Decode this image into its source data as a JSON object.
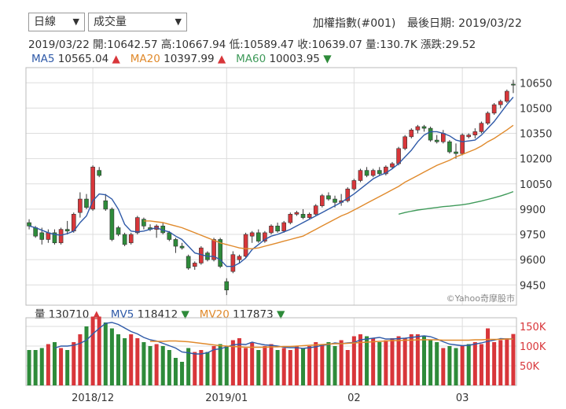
{
  "toolbar": {
    "period_select": "日線",
    "indicator_select": "成交量",
    "index_title": "加權指數(#001)",
    "last_date_label": "最後日期: 2019/03/22"
  },
  "quote": {
    "date": "2019/03/22",
    "open": "開:10642.57",
    "high": "高:10667.94",
    "low": "低:10589.47",
    "close": "收:10639.07",
    "volume": "量:130.7K",
    "change": "漲跌:29.52"
  },
  "ma": {
    "ma5_label": "MA5",
    "ma5_value": "10565.04",
    "ma5_dir": "▲",
    "ma20_label": "MA20",
    "ma20_value": "10397.99",
    "ma20_dir": "▲",
    "ma60_label": "MA60",
    "ma60_value": "10003.95",
    "ma60_dir": "▼"
  },
  "vol_legend": {
    "vol_label": "量",
    "vol_value": "130710",
    "vol_dir": "▲",
    "mv5_label": "MV5",
    "mv5_value": "118412",
    "mv5_dir": "▼",
    "mv20_label": "MV20",
    "mv20_value": "117873",
    "mv20_dir": "▼"
  },
  "watermark": "©Yahoo奇摩股市",
  "colors": {
    "up": "#d8363a",
    "down": "#2e8b3a",
    "ma5": "#2f5aa8",
    "ma20": "#e08a2c",
    "ma60": "#3f9a5a",
    "grid": "#dddddd"
  },
  "chart_data": [
    {
      "type": "candlestick",
      "y_ticks": [
        "10650",
        "10500",
        "10350",
        "10200",
        "10050",
        "9900",
        "9750",
        "9600",
        "9450"
      ],
      "y_tick_values": [
        10650,
        10500,
        10350,
        10200,
        10050,
        9900,
        9750,
        9600,
        9450
      ],
      "ylim": [
        9330,
        10740
      ],
      "x_ticks": [
        "2018/12",
        "2019/01",
        "02",
        "03"
      ],
      "x_tick_index": [
        10,
        31,
        51,
        68
      ],
      "candles": [
        {
          "o": 9820,
          "h": 9840,
          "l": 9780,
          "c": 9800
        },
        {
          "o": 9790,
          "h": 9800,
          "l": 9730,
          "c": 9740
        },
        {
          "o": 9760,
          "h": 9790,
          "l": 9690,
          "c": 9720
        },
        {
          "o": 9720,
          "h": 9780,
          "l": 9700,
          "c": 9760
        },
        {
          "o": 9760,
          "h": 9780,
          "l": 9690,
          "c": 9700
        },
        {
          "o": 9700,
          "h": 9790,
          "l": 9690,
          "c": 9780
        },
        {
          "o": 9780,
          "h": 9830,
          "l": 9750,
          "c": 9770
        },
        {
          "o": 9770,
          "h": 9880,
          "l": 9760,
          "c": 9870
        },
        {
          "o": 9880,
          "h": 10000,
          "l": 9850,
          "c": 9960
        },
        {
          "o": 9960,
          "h": 9990,
          "l": 9900,
          "c": 9910
        },
        {
          "o": 9900,
          "h": 10160,
          "l": 9890,
          "c": 10150
        },
        {
          "o": 10130,
          "h": 10150,
          "l": 10090,
          "c": 10100
        },
        {
          "o": 9950,
          "h": 9990,
          "l": 9890,
          "c": 9900
        },
        {
          "o": 9900,
          "h": 9910,
          "l": 9710,
          "c": 9720
        },
        {
          "o": 9790,
          "h": 9800,
          "l": 9740,
          "c": 9750
        },
        {
          "o": 9750,
          "h": 9760,
          "l": 9680,
          "c": 9690
        },
        {
          "o": 9700,
          "h": 9760,
          "l": 9690,
          "c": 9750
        },
        {
          "o": 9760,
          "h": 9860,
          "l": 9750,
          "c": 9850
        },
        {
          "o": 9840,
          "h": 9850,
          "l": 9780,
          "c": 9800
        },
        {
          "o": 9790,
          "h": 9810,
          "l": 9770,
          "c": 9780
        },
        {
          "o": 9780,
          "h": 9810,
          "l": 9730,
          "c": 9800
        },
        {
          "o": 9800,
          "h": 9820,
          "l": 9750,
          "c": 9760
        },
        {
          "o": 9760,
          "h": 9770,
          "l": 9710,
          "c": 9720
        },
        {
          "o": 9720,
          "h": 9730,
          "l": 9640,
          "c": 9680
        },
        {
          "o": 9680,
          "h": 9700,
          "l": 9660,
          "c": 9670
        },
        {
          "o": 9620,
          "h": 9630,
          "l": 9540,
          "c": 9550
        },
        {
          "o": 9560,
          "h": 9590,
          "l": 9540,
          "c": 9580
        },
        {
          "o": 9580,
          "h": 9680,
          "l": 9570,
          "c": 9670
        },
        {
          "o": 9640,
          "h": 9650,
          "l": 9590,
          "c": 9600
        },
        {
          "o": 9600,
          "h": 9730,
          "l": 9590,
          "c": 9720
        },
        {
          "o": 9720,
          "h": 9730,
          "l": 9550,
          "c": 9560
        },
        {
          "o": 9470,
          "h": 9490,
          "l": 9390,
          "c": 9420
        },
        {
          "o": 9530,
          "h": 9650,
          "l": 9520,
          "c": 9630
        },
        {
          "o": 9600,
          "h": 9630,
          "l": 9580,
          "c": 9620
        },
        {
          "o": 9620,
          "h": 9760,
          "l": 9610,
          "c": 9750
        },
        {
          "o": 9740,
          "h": 9770,
          "l": 9700,
          "c": 9760
        },
        {
          "o": 9760,
          "h": 9780,
          "l": 9700,
          "c": 9710
        },
        {
          "o": 9710,
          "h": 9770,
          "l": 9700,
          "c": 9760
        },
        {
          "o": 9760,
          "h": 9810,
          "l": 9750,
          "c": 9800
        },
        {
          "o": 9800,
          "h": 9820,
          "l": 9760,
          "c": 9770
        },
        {
          "o": 9770,
          "h": 9830,
          "l": 9760,
          "c": 9820
        },
        {
          "o": 9820,
          "h": 9880,
          "l": 9810,
          "c": 9870
        },
        {
          "o": 9870,
          "h": 9890,
          "l": 9860,
          "c": 9880
        },
        {
          "o": 9870,
          "h": 9900,
          "l": 9840,
          "c": 9850
        },
        {
          "o": 9850,
          "h": 9880,
          "l": 9840,
          "c": 9870
        },
        {
          "o": 9870,
          "h": 9930,
          "l": 9860,
          "c": 9920
        },
        {
          "o": 9920,
          "h": 9990,
          "l": 9910,
          "c": 9980
        },
        {
          "o": 9980,
          "h": 10000,
          "l": 9950,
          "c": 9960
        },
        {
          "o": 9960,
          "h": 9980,
          "l": 9910,
          "c": 9940
        },
        {
          "o": 9940,
          "h": 9990,
          "l": 9920,
          "c": 9950
        },
        {
          "o": 9950,
          "h": 10030,
          "l": 9940,
          "c": 10020
        },
        {
          "o": 10020,
          "h": 10080,
          "l": 10010,
          "c": 10070
        },
        {
          "o": 10070,
          "h": 10140,
          "l": 10060,
          "c": 10130
        },
        {
          "o": 10130,
          "h": 10150,
          "l": 10090,
          "c": 10100
        },
        {
          "o": 10100,
          "h": 10140,
          "l": 10090,
          "c": 10130
        },
        {
          "o": 10130,
          "h": 10150,
          "l": 10100,
          "c": 10110
        },
        {
          "o": 10110,
          "h": 10160,
          "l": 10100,
          "c": 10150
        },
        {
          "o": 10150,
          "h": 10180,
          "l": 10140,
          "c": 10170
        },
        {
          "o": 10170,
          "h": 10270,
          "l": 10160,
          "c": 10260
        },
        {
          "o": 10260,
          "h": 10340,
          "l": 10250,
          "c": 10330
        },
        {
          "o": 10330,
          "h": 10380,
          "l": 10320,
          "c": 10370
        },
        {
          "o": 10370,
          "h": 10400,
          "l": 10350,
          "c": 10390
        },
        {
          "o": 10390,
          "h": 10400,
          "l": 10360,
          "c": 10380
        },
        {
          "o": 10380,
          "h": 10390,
          "l": 10300,
          "c": 10310
        },
        {
          "o": 10310,
          "h": 10340,
          "l": 10290,
          "c": 10300
        },
        {
          "o": 10300,
          "h": 10370,
          "l": 10290,
          "c": 10350
        },
        {
          "o": 10300,
          "h": 10310,
          "l": 10230,
          "c": 10240
        },
        {
          "o": 10240,
          "h": 10290,
          "l": 10200,
          "c": 10230
        },
        {
          "o": 10230,
          "h": 10350,
          "l": 10220,
          "c": 10340
        },
        {
          "o": 10330,
          "h": 10350,
          "l": 10320,
          "c": 10340
        },
        {
          "o": 10340,
          "h": 10380,
          "l": 10320,
          "c": 10360
        },
        {
          "o": 10360,
          "h": 10420,
          "l": 10350,
          "c": 10410
        },
        {
          "o": 10410,
          "h": 10480,
          "l": 10400,
          "c": 10470
        },
        {
          "o": 10470,
          "h": 10530,
          "l": 10460,
          "c": 10520
        },
        {
          "o": 10520,
          "h": 10550,
          "l": 10500,
          "c": 10540
        },
        {
          "o": 10540,
          "h": 10610,
          "l": 10530,
          "c": 10600
        },
        {
          "o": 10642,
          "h": 10668,
          "l": 10589,
          "c": 10639
        }
      ],
      "ma5": [
        9800,
        9790,
        9775,
        9760,
        9750,
        9745,
        9755,
        9770,
        9820,
        9860,
        9950,
        9990,
        9985,
        9960,
        9900,
        9810,
        9770,
        9765,
        9770,
        9780,
        9790,
        9775,
        9765,
        9740,
        9720,
        9680,
        9640,
        9630,
        9620,
        9620,
        9600,
        9560,
        9560,
        9580,
        9610,
        9660,
        9690,
        9720,
        9740,
        9750,
        9765,
        9780,
        9800,
        9820,
        9840,
        9860,
        9880,
        9900,
        9920,
        9940,
        9965,
        9990,
        10020,
        10050,
        10080,
        10100,
        10115,
        10140,
        10170,
        10210,
        10250,
        10300,
        10340,
        10360,
        10360,
        10350,
        10335,
        10310,
        10300,
        10305,
        10310,
        10340,
        10380,
        10420,
        10470,
        10520,
        10565
      ],
      "ma20": [
        null,
        null,
        null,
        null,
        null,
        null,
        null,
        null,
        null,
        null,
        null,
        null,
        null,
        null,
        null,
        null,
        null,
        null,
        9830,
        9830,
        9825,
        9820,
        9810,
        9800,
        9790,
        9775,
        9760,
        9745,
        9730,
        9715,
        9700,
        9690,
        9680,
        9670,
        9665,
        9665,
        9670,
        9680,
        9690,
        9700,
        9710,
        9720,
        9730,
        9740,
        9760,
        9780,
        9800,
        9820,
        9840,
        9860,
        9875,
        9895,
        9915,
        9935,
        9955,
        9975,
        9995,
        10015,
        10035,
        10060,
        10080,
        10100,
        10120,
        10140,
        10160,
        10175,
        10190,
        10210,
        10225,
        10240,
        10255,
        10275,
        10300,
        10320,
        10345,
        10370,
        10398
      ],
      "ma60": [
        null,
        null,
        null,
        null,
        null,
        null,
        null,
        null,
        null,
        null,
        null,
        null,
        null,
        null,
        null,
        null,
        null,
        null,
        null,
        null,
        null,
        null,
        null,
        null,
        null,
        null,
        null,
        null,
        null,
        null,
        null,
        null,
        null,
        null,
        null,
        null,
        null,
        null,
        null,
        null,
        null,
        null,
        null,
        null,
        null,
        null,
        null,
        null,
        null,
        null,
        null,
        null,
        null,
        null,
        null,
        null,
        null,
        null,
        9870,
        9880,
        9888,
        9895,
        9900,
        9905,
        9910,
        9915,
        9918,
        9922,
        9926,
        9932,
        9940,
        9948,
        9958,
        9968,
        9978,
        9990,
        10004
      ]
    },
    {
      "type": "bar",
      "y_ticks": [
        "150K",
        "100K",
        "50K"
      ],
      "y_tick_values": [
        150000,
        100000,
        50000
      ],
      "ylim": [
        0,
        172000
      ],
      "volume": [
        90000,
        90000,
        95000,
        105000,
        110000,
        95000,
        90000,
        110000,
        130000,
        150000,
        175000,
        175000,
        160000,
        145000,
        130000,
        120000,
        130000,
        120000,
        110000,
        100000,
        105000,
        100000,
        90000,
        70000,
        60000,
        95000,
        85000,
        90000,
        85000,
        100000,
        105000,
        100000,
        115000,
        120000,
        95000,
        110000,
        90000,
        100000,
        105000,
        90000,
        95000,
        90000,
        100000,
        95000,
        100000,
        110000,
        105000,
        110000,
        100000,
        115000,
        90000,
        125000,
        130000,
        125000,
        120000,
        110000,
        115000,
        120000,
        125000,
        120000,
        130000,
        130000,
        125000,
        115000,
        110000,
        95000,
        100000,
        95000,
        100000,
        105000,
        110000,
        105000,
        145000,
        110000,
        115000,
        120000,
        130710
      ],
      "up_flags": [
        false,
        false,
        false,
        true,
        false,
        true,
        false,
        true,
        true,
        false,
        true,
        true,
        false,
        false,
        false,
        false,
        true,
        true,
        false,
        false,
        true,
        false,
        false,
        false,
        false,
        false,
        true,
        true,
        false,
        true,
        false,
        false,
        true,
        true,
        true,
        true,
        false,
        true,
        true,
        false,
        true,
        true,
        true,
        false,
        true,
        true,
        true,
        false,
        false,
        true,
        true,
        true,
        true,
        false,
        true,
        false,
        true,
        true,
        true,
        true,
        true,
        true,
        false,
        false,
        false,
        true,
        false,
        false,
        true,
        false,
        true,
        true,
        true,
        true,
        true,
        true,
        true
      ],
      "mv5": [
        null,
        null,
        null,
        null,
        95000,
        100000,
        100000,
        102000,
        107000,
        115000,
        131000,
        145000,
        158000,
        160000,
        155000,
        146000,
        137000,
        131000,
        122000,
        116000,
        113000,
        107000,
        101000,
        95000,
        85000,
        83000,
        80000,
        80000,
        83000,
        91000,
        93000,
        98000,
        103000,
        105000,
        104000,
        110000,
        106000,
        103000,
        102000,
        100000,
        97000,
        96000,
        96000,
        94000,
        96000,
        98000,
        102000,
        104000,
        108000,
        106000,
        108000,
        109000,
        116000,
        118000,
        120000,
        122000,
        118000,
        118000,
        119000,
        120000,
        122000,
        124000,
        126000,
        124000,
        118000,
        111000,
        105000,
        103000,
        101000,
        102000,
        105000,
        108000,
        112000,
        115000,
        119000,
        118000,
        118412
      ],
      "mv20": [
        null,
        null,
        null,
        null,
        null,
        null,
        null,
        null,
        null,
        null,
        null,
        null,
        null,
        null,
        null,
        null,
        null,
        null,
        null,
        112000,
        112000,
        112000,
        113000,
        113000,
        112000,
        111000,
        109000,
        107000,
        105000,
        103000,
        101000,
        100000,
        99000,
        98000,
        97000,
        97000,
        97000,
        97000,
        98000,
        98000,
        99000,
        99000,
        100000,
        101000,
        102000,
        103000,
        104000,
        105000,
        106000,
        106000,
        107000,
        108000,
        109000,
        110000,
        111000,
        112000,
        113000,
        114000,
        114000,
        115000,
        115000,
        116000,
        116000,
        116000,
        116000,
        115000,
        115000,
        115000,
        115000,
        115000,
        116000,
        116000,
        117000,
        117000,
        117000,
        118000,
        117873
      ]
    }
  ]
}
